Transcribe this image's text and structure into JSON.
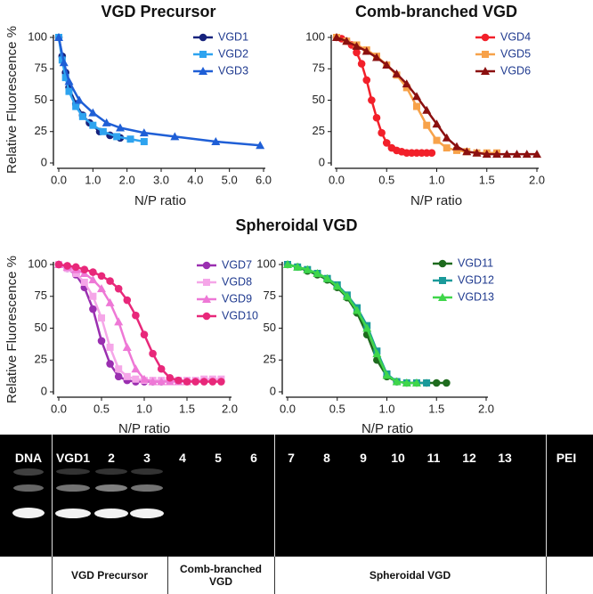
{
  "chart_data": [
    {
      "type": "line",
      "title": "VGD Precursor",
      "y_label": "Relative Fluorescence %",
      "x_label": "N/P ratio",
      "xlim": [
        0,
        6
      ],
      "ylim": [
        0,
        100
      ],
      "xticks": [
        {
          "value": 0,
          "label": "0.0"
        },
        {
          "value": 1,
          "label": "1.0"
        },
        {
          "value": 2,
          "label": "2.0"
        },
        {
          "value": 3,
          "label": "3.0"
        },
        {
          "value": 4,
          "label": "4.0"
        },
        {
          "value": 5,
          "label": "5.0"
        },
        {
          "value": 6,
          "label": "6.0"
        }
      ],
      "yticks": [
        0,
        25,
        50,
        75,
        100
      ],
      "series": [
        {
          "name": "VGD1",
          "color": "#17237d",
          "marker": "circle",
          "x": [
            0,
            0.1,
            0.2,
            0.3,
            0.5,
            0.7,
            0.9,
            1.2,
            1.5,
            1.8
          ],
          "values": [
            100,
            85,
            72,
            60,
            47,
            38,
            32,
            25,
            22,
            20
          ]
        },
        {
          "name": "VGD2",
          "color": "#2ea3ef",
          "marker": "square",
          "x": [
            0,
            0.1,
            0.2,
            0.3,
            0.5,
            0.7,
            1.0,
            1.3,
            1.7,
            2.1,
            2.5
          ],
          "values": [
            100,
            82,
            68,
            57,
            45,
            37,
            30,
            25,
            21,
            19,
            17
          ]
        },
        {
          "name": "VGD3",
          "color": "#1f5fd6",
          "marker": "triangle",
          "x": [
            0,
            0.15,
            0.3,
            0.6,
            1.0,
            1.4,
            1.8,
            2.5,
            3.4,
            4.6,
            5.9
          ],
          "values": [
            100,
            80,
            65,
            50,
            40,
            32,
            28,
            24,
            21,
            17,
            14
          ]
        }
      ]
    },
    {
      "type": "line",
      "title": "Comb-branched VGD",
      "x_label": "N/P ratio",
      "xlim": [
        0,
        2
      ],
      "ylim": [
        0,
        100
      ],
      "xticks": [
        {
          "value": 0,
          "label": "0.0"
        },
        {
          "value": 0.5,
          "label": "0.5"
        },
        {
          "value": 1,
          "label": "1.0"
        },
        {
          "value": 1.5,
          "label": "1.5"
        },
        {
          "value": 2,
          "label": "2.0"
        }
      ],
      "yticks": [
        0,
        25,
        50,
        75,
        100
      ],
      "series": [
        {
          "name": "VGD4",
          "color": "#f2202a",
          "marker": "circle",
          "x": [
            0,
            0.05,
            0.1,
            0.15,
            0.2,
            0.25,
            0.3,
            0.35,
            0.4,
            0.45,
            0.5,
            0.55,
            0.6,
            0.65,
            0.7,
            0.75,
            0.8,
            0.85,
            0.9,
            0.95
          ],
          "values": [
            100,
            99,
            97,
            94,
            88,
            79,
            66,
            50,
            36,
            24,
            16,
            12,
            10,
            9,
            8,
            8,
            8,
            8,
            8,
            8
          ]
        },
        {
          "name": "VGD5",
          "color": "#f7a24a",
          "marker": "square",
          "x": [
            0,
            0.1,
            0.2,
            0.3,
            0.4,
            0.5,
            0.6,
            0.7,
            0.8,
            0.9,
            1.0,
            1.1,
            1.2,
            1.3,
            1.4,
            1.5,
            1.6
          ],
          "values": [
            100,
            97,
            94,
            90,
            85,
            78,
            70,
            60,
            45,
            30,
            18,
            12,
            10,
            9,
            8,
            8,
            8
          ]
        },
        {
          "name": "VGD6",
          "color": "#8b1010",
          "marker": "triangle",
          "x": [
            0,
            0.1,
            0.2,
            0.3,
            0.4,
            0.5,
            0.6,
            0.7,
            0.8,
            0.9,
            1.0,
            1.1,
            1.2,
            1.3,
            1.4,
            1.5,
            1.6,
            1.7,
            1.8,
            1.9,
            2.0
          ],
          "values": [
            100,
            97,
            93,
            89,
            84,
            78,
            71,
            63,
            53,
            42,
            31,
            20,
            13,
            9,
            8,
            7,
            7,
            7,
            7,
            7,
            7
          ]
        }
      ]
    },
    {
      "type": "line",
      "title": "Spheroidal VGD",
      "y_label": "Relative Fluorescence %",
      "x_label": "N/P ratio",
      "xlim": [
        0,
        2
      ],
      "ylim": [
        0,
        100
      ],
      "xticks": [
        {
          "value": 0,
          "label": "0.0"
        },
        {
          "value": 0.5,
          "label": "0.5"
        },
        {
          "value": 1,
          "label": "1.0"
        },
        {
          "value": 1.5,
          "label": "1.5"
        },
        {
          "value": 2,
          "label": "2.0"
        }
      ],
      "yticks": [
        0,
        25,
        50,
        75,
        100
      ],
      "series": [
        {
          "name": "VGD7",
          "color": "#9a2fb0",
          "marker": "circle",
          "x": [
            0,
            0.1,
            0.2,
            0.3,
            0.4,
            0.5,
            0.6,
            0.7,
            0.8,
            0.9,
            1.0,
            1.1,
            1.2
          ],
          "values": [
            100,
            97,
            92,
            82,
            65,
            40,
            22,
            12,
            9,
            8,
            8,
            8,
            8
          ]
        },
        {
          "name": "VGD8",
          "color": "#f5a6e8",
          "marker": "square",
          "x": [
            0,
            0.1,
            0.2,
            0.3,
            0.4,
            0.5,
            0.6,
            0.7,
            0.8,
            0.9,
            1.0,
            1.1,
            1.2,
            1.3,
            1.4,
            1.5,
            1.6,
            1.7,
            1.8,
            1.9
          ],
          "values": [
            100,
            97,
            93,
            86,
            75,
            58,
            35,
            18,
            12,
            10,
            9,
            9,
            9,
            9,
            9,
            9,
            9,
            10,
            10,
            10
          ]
        },
        {
          "name": "VGD9",
          "color": "#ee78d6",
          "marker": "triangle",
          "x": [
            0,
            0.1,
            0.2,
            0.3,
            0.4,
            0.5,
            0.6,
            0.7,
            0.8,
            0.9,
            1.0,
            1.1,
            1.2,
            1.3,
            1.4,
            1.5
          ],
          "values": [
            100,
            98,
            96,
            93,
            88,
            81,
            70,
            55,
            35,
            18,
            10,
            8,
            8,
            8,
            8,
            8
          ]
        },
        {
          "name": "VGD10",
          "color": "#e8287a",
          "marker": "circle",
          "x": [
            0,
            0.1,
            0.2,
            0.3,
            0.4,
            0.5,
            0.6,
            0.7,
            0.8,
            0.9,
            1.0,
            1.1,
            1.2,
            1.3,
            1.4,
            1.5,
            1.6,
            1.7,
            1.8,
            1.9
          ],
          "values": [
            100,
            99,
            98,
            96,
            94,
            91,
            87,
            81,
            72,
            60,
            45,
            30,
            18,
            11,
            9,
            8,
            8,
            8,
            8,
            8
          ]
        }
      ]
    },
    {
      "type": "line",
      "x_label": "N/P ratio",
      "xlim": [
        0,
        2
      ],
      "ylim": [
        0,
        100
      ],
      "xticks": [
        {
          "value": 0,
          "label": "0.0"
        },
        {
          "value": 0.5,
          "label": "0.5"
        },
        {
          "value": 1,
          "label": "1.0"
        },
        {
          "value": 1.5,
          "label": "1.5"
        },
        {
          "value": 2,
          "label": "2.0"
        }
      ],
      "yticks": [
        0,
        25,
        50,
        75,
        100
      ],
      "series": [
        {
          "name": "VGD11",
          "color": "#1e6b1e",
          "marker": "circle",
          "x": [
            0,
            0.1,
            0.2,
            0.3,
            0.4,
            0.5,
            0.6,
            0.7,
            0.8,
            0.9,
            1.0,
            1.1,
            1.2,
            1.3,
            1.4,
            1.5,
            1.6
          ],
          "values": [
            100,
            98,
            95,
            92,
            88,
            82,
            74,
            62,
            45,
            25,
            12,
            8,
            7,
            7,
            7,
            7,
            7
          ]
        },
        {
          "name": "VGD12",
          "color": "#1a9a9a",
          "marker": "square",
          "x": [
            0,
            0.1,
            0.2,
            0.3,
            0.4,
            0.5,
            0.6,
            0.7,
            0.8,
            0.9,
            1.0,
            1.1,
            1.2,
            1.3,
            1.4
          ],
          "values": [
            100,
            98,
            96,
            93,
            89,
            84,
            76,
            66,
            52,
            32,
            14,
            8,
            7,
            7,
            7
          ]
        },
        {
          "name": "VGD13",
          "color": "#3fd64a",
          "marker": "triangle",
          "x": [
            0,
            0.1,
            0.2,
            0.3,
            0.4,
            0.5,
            0.6,
            0.7,
            0.8,
            0.9,
            1.0,
            1.1,
            1.2,
            1.3
          ],
          "values": [
            100,
            98,
            96,
            93,
            89,
            83,
            75,
            64,
            50,
            30,
            13,
            8,
            7,
            7
          ]
        }
      ]
    }
  ],
  "gel": {
    "lanes": [
      "DNA",
      "VGD1",
      "2",
      "3",
      "4",
      "5",
      "6",
      "7",
      "8",
      "9",
      "10",
      "11",
      "12",
      "13",
      "PEI"
    ],
    "groups": [
      "VGD Precursor",
      "Comb-branched VGD",
      "Spheroidal VGD"
    ]
  }
}
